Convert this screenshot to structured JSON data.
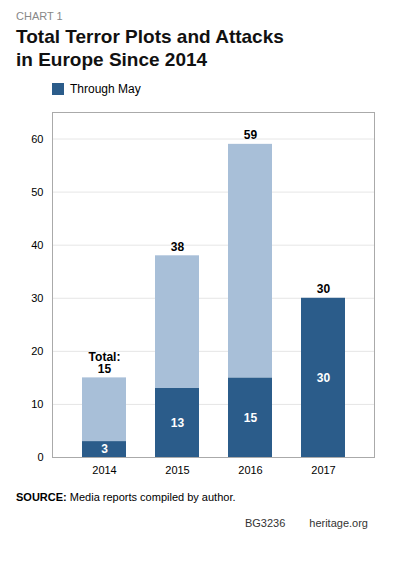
{
  "chart_data": {
    "type": "bar",
    "stacked": true,
    "title": "Total Terror Plots and Attacks\nin Europe Since 2014",
    "annotations": [
      "CHART 1",
      "SOURCE: Media reports compiled by author.",
      "BG3236",
      "heritage.org"
    ],
    "categories": [
      "2014",
      "2015",
      "2016",
      "2017"
    ],
    "series": [
      {
        "name": "Through May",
        "color": "#2b5c8a",
        "values": [
          3,
          13,
          15,
          30
        ],
        "data_labels": true
      },
      {
        "color": "#a8bfd8",
        "values": [
          12,
          25,
          44,
          0
        ]
      }
    ],
    "totals": {
      "values": [
        15,
        38,
        59,
        30
      ],
      "value_labels": [
        "Total:\n15",
        "38",
        "59",
        "30"
      ]
    },
    "ylim": [
      0,
      65
    ],
    "yticks": [
      0,
      10,
      20,
      30,
      40,
      50,
      60
    ],
    "grid": true,
    "legend": "upper left"
  }
}
